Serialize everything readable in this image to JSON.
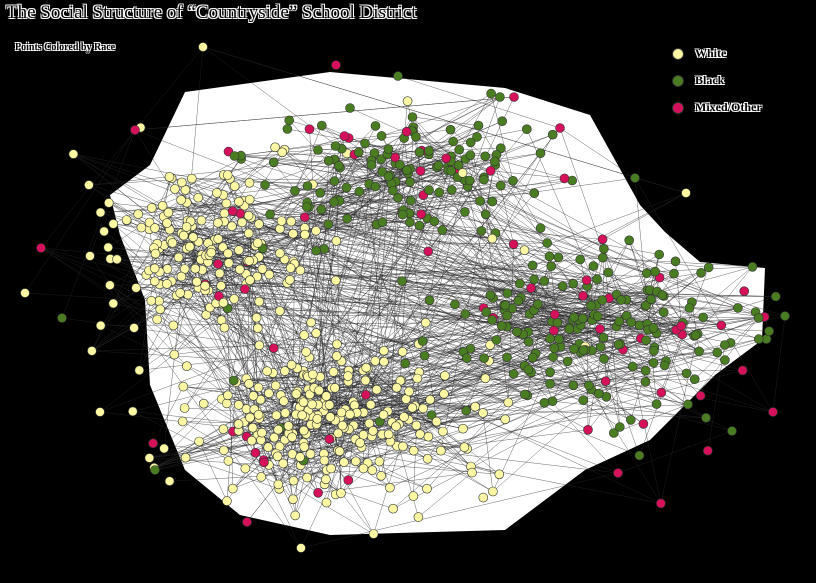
{
  "title": "The Social Structure of “Countryside” School District",
  "subtitle": "Points Colored by Race",
  "legend": [
    {
      "label": "White",
      "color": "#fbf7a3"
    },
    {
      "label": "Black",
      "color": "#4a7c22"
    },
    {
      "label": "Mixed/Other",
      "color": "#d6115b"
    }
  ],
  "colors": {
    "background": "#000000",
    "hull": "#ffffff",
    "edge": "#2a2a2a",
    "node_outline": "#333333"
  }
}
